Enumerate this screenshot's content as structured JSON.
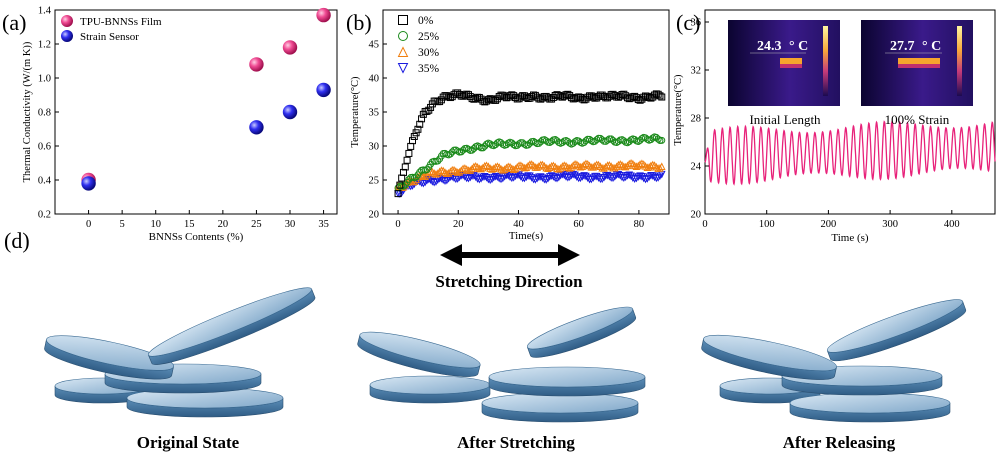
{
  "panel_labels": {
    "a": "(a)",
    "b": "(b)",
    "c": "(c)",
    "d": "(d)"
  },
  "colors": {
    "pink": "#e8227a",
    "blue": "#1a1adf",
    "black": "#000000",
    "green": "#1a8a1a",
    "orange": "#f07f10",
    "disk": "#6fa0c8"
  },
  "chart_data": [
    {
      "panel": "a",
      "type": "scatter",
      "xlabel": "BNNSs Contents (%)",
      "ylabel": "Thermal Conductivity (W/(m K))",
      "xlim": [
        -5,
        37
      ],
      "ylim": [
        0.2,
        1.4
      ],
      "xticks": [
        "0",
        "5",
        "10",
        "15",
        "20",
        "25",
        "30",
        "35"
      ],
      "yticks": [
        "0.2",
        "0.4",
        "0.6",
        "0.8",
        "1.0",
        "1.2",
        "1.4"
      ],
      "legend": "top-left",
      "series": [
        {
          "name": "TPU-BNNSs Film",
          "color": "#e8227a",
          "points": [
            [
              0,
              0.4
            ],
            [
              25,
              1.08
            ],
            [
              30,
              1.18
            ],
            [
              35,
              1.37
            ]
          ]
        },
        {
          "name": "Strain Sensor",
          "color": "#1a1adf",
          "points": [
            [
              0,
              0.38
            ],
            [
              25,
              0.71
            ],
            [
              30,
              0.8
            ],
            [
              35,
              0.93
            ]
          ]
        }
      ]
    },
    {
      "panel": "b",
      "type": "scatter",
      "xlabel": "Time(s)",
      "ylabel": "Temperature(°C)",
      "xlim": [
        -5,
        90
      ],
      "ylim": [
        20,
        50
      ],
      "xticks": [
        "0",
        "20",
        "40",
        "60",
        "80"
      ],
      "yticks": [
        "20",
        "25",
        "30",
        "35",
        "40",
        "45"
      ],
      "legend": "top-left",
      "series": [
        {
          "name": "0%",
          "color": "#000000",
          "marker": "square",
          "x": [
            0,
            3,
            6,
            9,
            12,
            15,
            20,
            25,
            30,
            35,
            40,
            45,
            50,
            55,
            60,
            65,
            70,
            75,
            80,
            85,
            88
          ],
          "values": [
            23,
            28,
            32,
            35,
            36.5,
            37.2,
            37.5,
            37.1,
            36.8,
            37.3,
            37.0,
            37.4,
            37.1,
            37.3,
            37.0,
            37.4,
            37.2,
            37.3,
            37.1,
            37.4,
            37.3
          ]
        },
        {
          "name": "25%",
          "color": "#1a8a1a",
          "marker": "circle",
          "x": [
            0,
            5,
            10,
            15,
            20,
            25,
            30,
            40,
            50,
            60,
            70,
            80,
            88
          ],
          "values": [
            23.5,
            25.5,
            27,
            28.5,
            29.3,
            29.8,
            30.1,
            30.4,
            30.6,
            30.7,
            30.8,
            30.9,
            31
          ]
        },
        {
          "name": "30%",
          "color": "#f07f10",
          "marker": "triangle-up",
          "x": [
            0,
            5,
            10,
            15,
            20,
            30,
            40,
            50,
            60,
            70,
            80,
            88
          ],
          "values": [
            24,
            25,
            25.8,
            26.2,
            26.5,
            26.8,
            26.9,
            27.0,
            27.0,
            27.1,
            27.1,
            27.1
          ]
        },
        {
          "name": "35%",
          "color": "#1a1adf",
          "marker": "triangle-down",
          "x": [
            0,
            5,
            10,
            15,
            20,
            30,
            40,
            50,
            60,
            70,
            80,
            88
          ],
          "values": [
            23,
            24.3,
            24.9,
            25.2,
            25.3,
            25.4,
            25.4,
            25.4,
            25.5,
            25.4,
            25.5,
            25.5
          ]
        }
      ]
    },
    {
      "panel": "c",
      "type": "line",
      "xlabel": "Time (s)",
      "ylabel": "Temperature(°C)",
      "xlim": [
        0,
        470
      ],
      "ylim": [
        20,
        37
      ],
      "xticks": [
        "0",
        "100",
        "200",
        "300",
        "400"
      ],
      "yticks": [
        "20",
        "24",
        "28",
        "32",
        "36"
      ],
      "series": [
        {
          "color": "#e8227a",
          "baseline": 24.8,
          "amplitude": 2.4,
          "period_s": 12.5,
          "start_value": 24.3,
          "end_value": 27.5
        }
      ],
      "insets": [
        {
          "reading": "24.3",
          "unit": "° C",
          "caption": "Initial Length"
        },
        {
          "reading": "27.7",
          "unit": "° C",
          "caption": "100% Strain"
        }
      ]
    }
  ],
  "stretch_label": "Stretching Direction",
  "state_captions": [
    "Original State",
    "After  Stretching",
    "After  Releasing"
  ]
}
